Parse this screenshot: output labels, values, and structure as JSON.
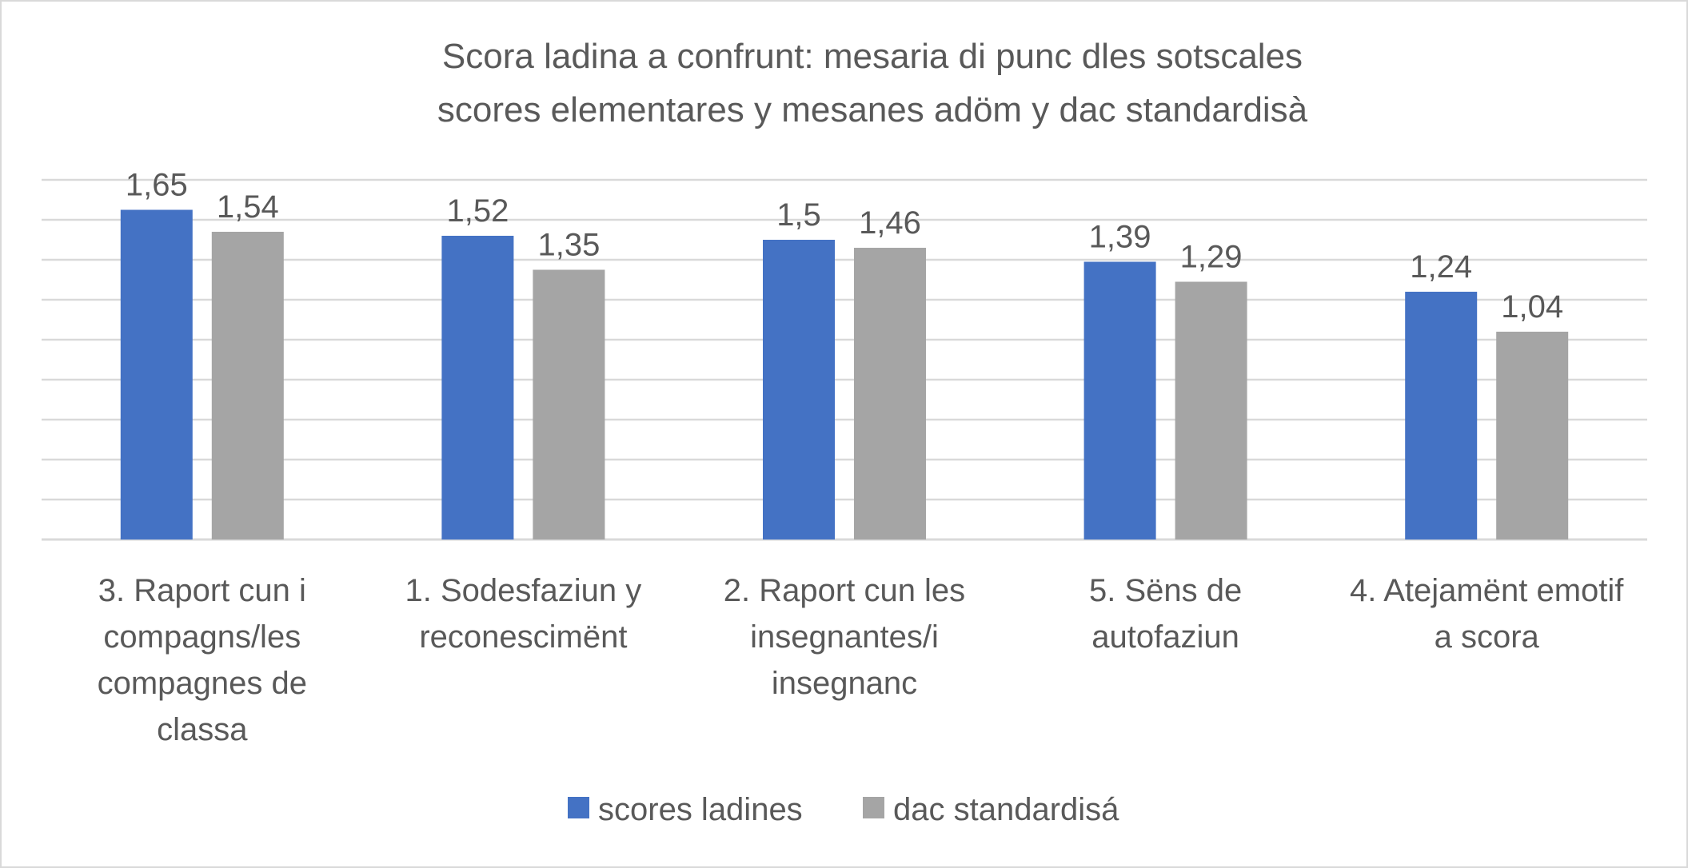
{
  "chart_data": {
    "type": "bar",
    "title_lines": [
      "Scora ladina a confrunt: mesaria di punc dles sotscales",
      "scores elementares y mesanes adöm y dac standardisà"
    ],
    "categories": [
      [
        "3. Raport cun i",
        "compagns/les",
        "compagnes de",
        "classa"
      ],
      [
        "1. Sodesfaziun y",
        "reconescimënt"
      ],
      [
        "2. Raport cun les",
        "insegnantes/i",
        "insegnanc"
      ],
      [
        "5. Sëns de",
        "autofaziun"
      ],
      [
        "4. Atejamënt emotif",
        "a scora"
      ]
    ],
    "series": [
      {
        "name": "scores ladines",
        "color": "#4472c4",
        "values": [
          1.65,
          1.52,
          1.5,
          1.39,
          1.24
        ],
        "labels": [
          "1,65",
          "1,52",
          "1,5",
          "1,39",
          "1,24"
        ]
      },
      {
        "name": "dac standardisá",
        "color": "#a5a5a5",
        "values": [
          1.54,
          1.35,
          1.46,
          1.29,
          1.04
        ],
        "labels": [
          "1,54",
          "1,35",
          "1,46",
          "1,29",
          "1,04"
        ]
      }
    ],
    "ylim": [
      0,
      1.8
    ],
    "grid_step": 0.2,
    "grid": true,
    "legend_position": "bottom",
    "gridline_color": "#d9d9d9",
    "text_color": "#595959"
  }
}
